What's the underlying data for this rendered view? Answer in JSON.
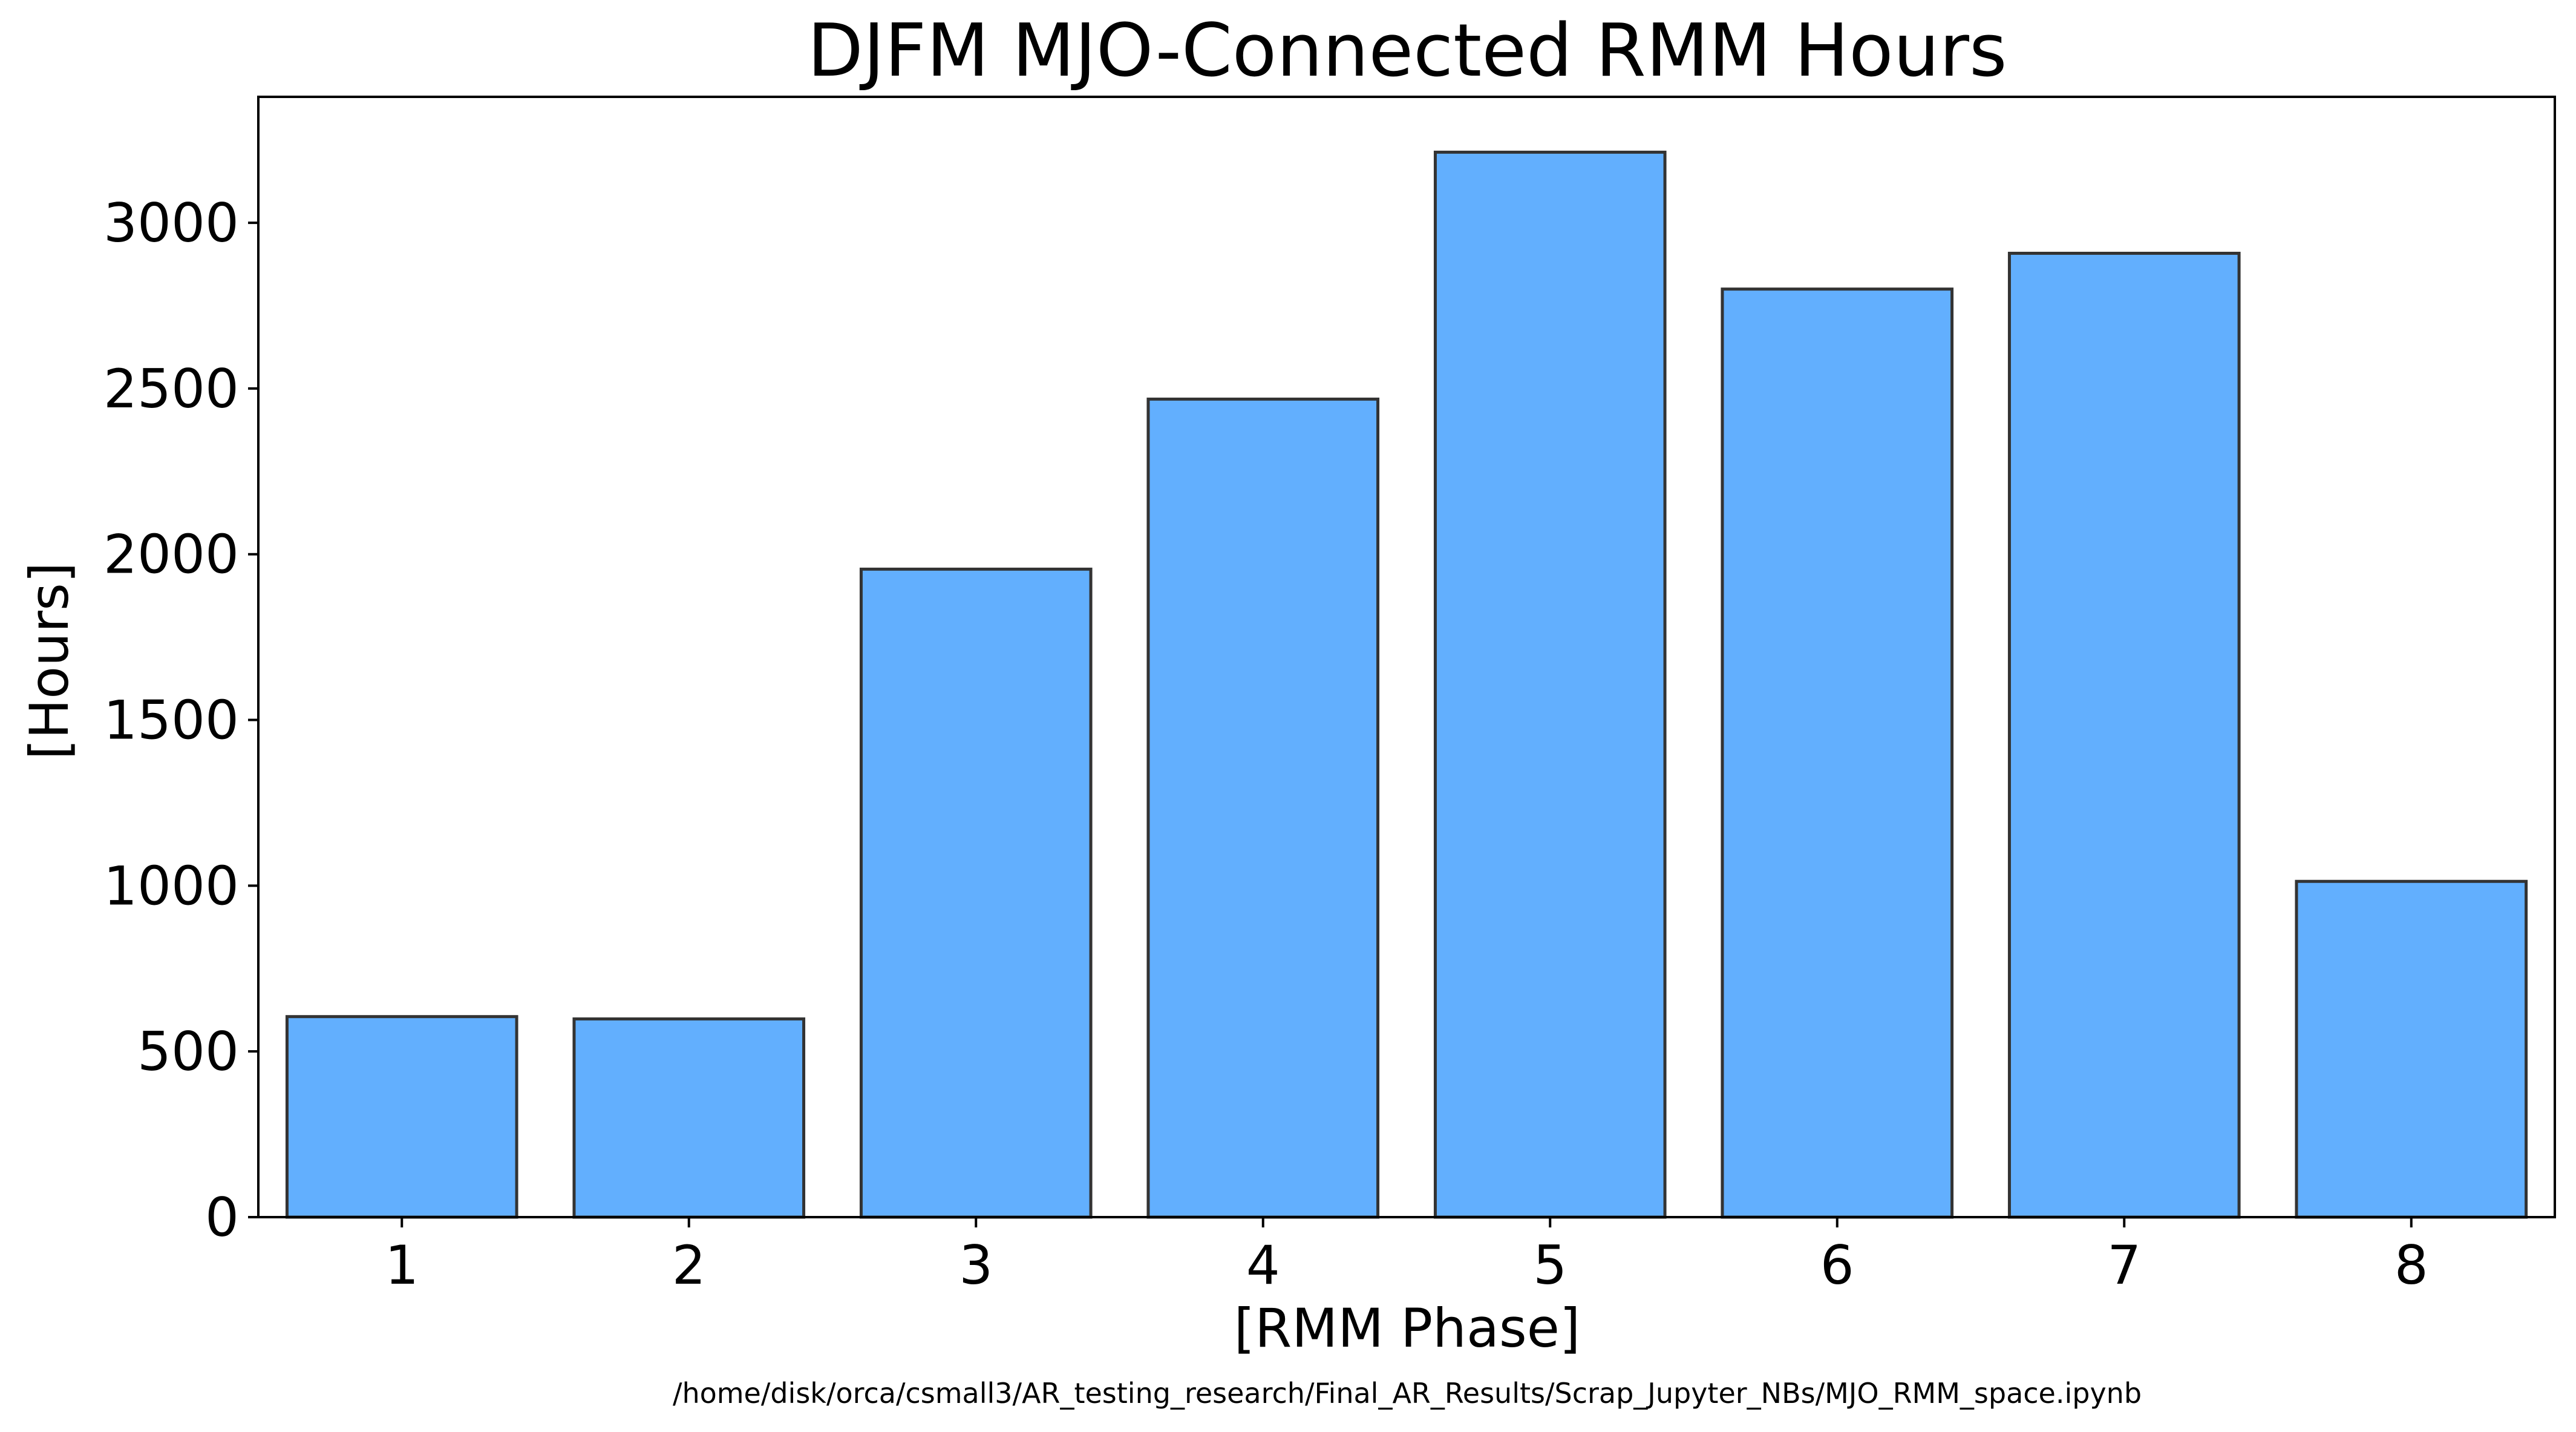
{
  "chart_data": {
    "type": "bar",
    "title": "DJFM MJO-Connected RMM Hours",
    "xlabel": "[RMM Phase]",
    "ylabel": "[Hours]",
    "categories": [
      "1",
      "2",
      "3",
      "4",
      "5",
      "6",
      "7",
      "8"
    ],
    "values": [
      605,
      598,
      1955,
      2468,
      3213,
      2800,
      2908,
      1013
    ],
    "ylim": [
      0,
      3380
    ],
    "yticks": [
      0,
      500,
      1000,
      1500,
      2000,
      2500,
      3000
    ],
    "grid": false,
    "legend": "none",
    "bar_color": "#62AFFE",
    "bar_edge_color": "#333333"
  },
  "footer": {
    "path": "/home/disk/orca/csmall3/AR_testing_research/Final_AR_Results/Scrap_Jupyter_NBs/MJO_RMM_space.ipynb"
  }
}
